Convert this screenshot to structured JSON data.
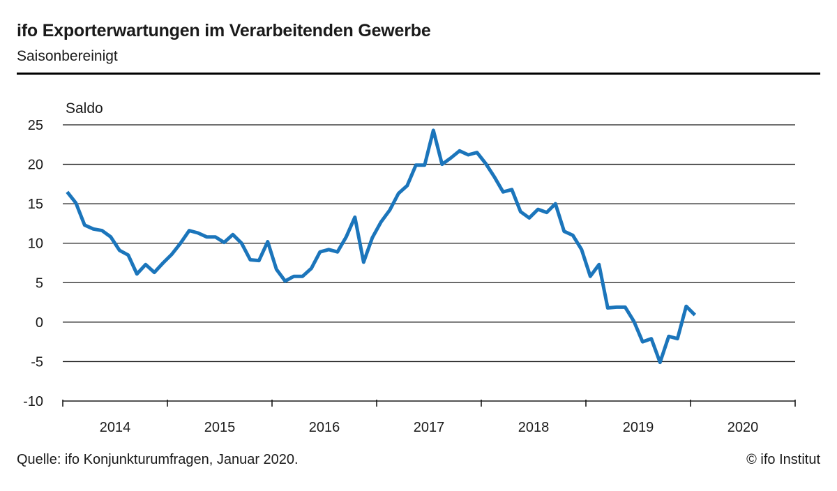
{
  "header": {
    "title": "ifo Exporterwartungen im Verarbeitenden Gewerbe",
    "subtitle": "Saisonbereinigt"
  },
  "footer": {
    "source": "Quelle:  ifo Konjunkturumfragen,  Januar 2020.",
    "copyright": "© ifo Institut"
  },
  "colors": {
    "line": "#1b75bb",
    "grid": "#1a1a1a",
    "axis": "#1a1a1a"
  },
  "chart_data": {
    "type": "line",
    "title": "ifo Exporterwartungen im Verarbeitenden Gewerbe",
    "subtitle": "Saisonbereinigt",
    "ylabel": "Saldo",
    "xlabel": "",
    "ylim": [
      -10,
      25
    ],
    "yticks": [
      25,
      20,
      15,
      10,
      5,
      0,
      -5,
      -10
    ],
    "ytick_labels": [
      "25",
      "20",
      "15",
      "10",
      "5",
      "0",
      "-5",
      "-10"
    ],
    "x_categories": [
      "2014",
      "2015",
      "2016",
      "2017",
      "2018",
      "2019",
      "2020"
    ],
    "grid": true,
    "series": [
      {
        "name": "Exporterwartungen",
        "x_start": "2014-01",
        "frequency": "monthly",
        "values": [
          16.5,
          15.1,
          12.3,
          11.8,
          11.6,
          10.8,
          9.1,
          8.5,
          6.1,
          7.3,
          6.3,
          7.5,
          8.6,
          10.0,
          11.6,
          11.3,
          10.8,
          10.8,
          10.1,
          11.1,
          10.0,
          7.9,
          7.8,
          10.2,
          6.7,
          5.2,
          5.8,
          5.8,
          6.8,
          8.9,
          9.2,
          8.9,
          10.8,
          13.3,
          7.6,
          10.7,
          12.7,
          14.2,
          16.3,
          17.3,
          19.9,
          19.9,
          24.3,
          20.0,
          20.8,
          21.7,
          21.2,
          21.5,
          20.1,
          18.4,
          16.5,
          16.8,
          14.0,
          13.2,
          14.3,
          13.9,
          15.0,
          11.5,
          11.0,
          9.2,
          5.8,
          7.3,
          1.8,
          1.9,
          1.9,
          0.1,
          -2.5,
          -2.1,
          -5.1,
          -1.8,
          -2.1,
          2.0,
          0.9
        ]
      }
    ]
  }
}
